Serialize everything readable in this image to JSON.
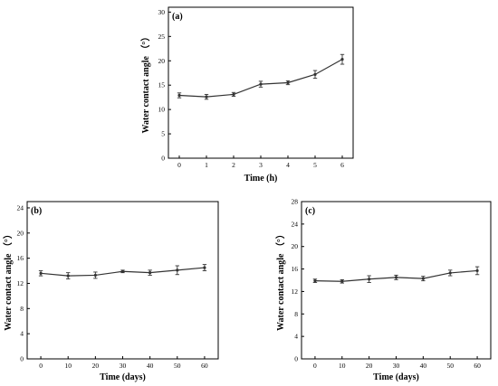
{
  "chart_data": [
    {
      "type": "line",
      "panel_label": "(a)",
      "xlabel": "Time (h)",
      "ylabel": "Water contact angle （°）",
      "x": [
        0,
        1,
        2,
        3,
        4,
        5,
        6
      ],
      "xticks": [
        0,
        1,
        2,
        3,
        4,
        5,
        6
      ],
      "xlim": [
        -0.4,
        6.4
      ],
      "ylim": [
        0,
        31
      ],
      "yticks": [
        0,
        5,
        10,
        15,
        20,
        25,
        30
      ],
      "series": [
        {
          "values": [
            12.9,
            12.6,
            13.1,
            15.2,
            15.5,
            17.2,
            20.3
          ],
          "errors": [
            0.5,
            0.5,
            0.4,
            0.6,
            0.4,
            0.8,
            1.0
          ]
        }
      ]
    },
    {
      "type": "line",
      "panel_label": "(b)",
      "xlabel": "Time (days)",
      "ylabel": "Water contact angle （°）",
      "x": [
        0,
        10,
        20,
        30,
        40,
        50,
        60
      ],
      "xticks": [
        0,
        10,
        20,
        30,
        40,
        50,
        60
      ],
      "xlim": [
        -5,
        65
      ],
      "ylim": [
        0,
        25
      ],
      "yticks": [
        0,
        4,
        8,
        12,
        16,
        20,
        24
      ],
      "series": [
        {
          "values": [
            13.6,
            13.2,
            13.3,
            13.9,
            13.7,
            14.1,
            14.5
          ],
          "errors": [
            0.4,
            0.5,
            0.5,
            0.2,
            0.4,
            0.7,
            0.5
          ]
        }
      ]
    },
    {
      "type": "line",
      "panel_label": "(c)",
      "xlabel": "Time (days)",
      "ylabel": "Water contact angle （°）",
      "x": [
        0,
        10,
        20,
        30,
        40,
        50,
        60
      ],
      "xticks": [
        0,
        10,
        20,
        30,
        40,
        50,
        60
      ],
      "xlim": [
        -5,
        65
      ],
      "ylim": [
        0,
        28
      ],
      "yticks": [
        0,
        4,
        8,
        12,
        16,
        20,
        24,
        28
      ],
      "series": [
        {
          "values": [
            13.9,
            13.8,
            14.2,
            14.5,
            14.3,
            15.3,
            15.7
          ],
          "errors": [
            0.3,
            0.3,
            0.6,
            0.4,
            0.4,
            0.5,
            0.7
          ]
        }
      ]
    }
  ]
}
